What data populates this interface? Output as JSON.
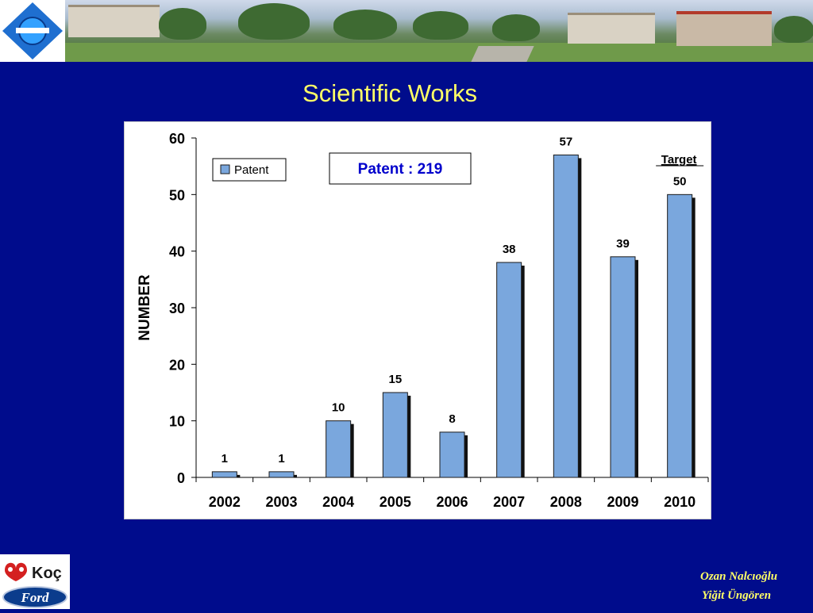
{
  "slide": {
    "title": "Scientific Works",
    "authors": [
      "Ozan Nalcıoğlu",
      "Yiğit Üngören"
    ]
  },
  "logos": {
    "top_left": "university-emblem",
    "bottom_left_top": "Koç",
    "bottom_left_bottom": "Ford"
  },
  "colors": {
    "background": "#000c8c",
    "title": "#ffff66",
    "bar_fill": "#7aa7dd",
    "bar_shadow": "#111111",
    "total_text": "#0000cc"
  },
  "chart_data": {
    "type": "bar",
    "categories": [
      "2002",
      "2003",
      "2004",
      "2005",
      "2006",
      "2007",
      "2008",
      "2009",
      "2010"
    ],
    "series": [
      {
        "name": "Patent",
        "values": [
          1,
          1,
          10,
          15,
          8,
          38,
          57,
          39,
          50
        ]
      }
    ],
    "data_labels": [
      "1",
      "1",
      "10",
      "15",
      "8",
      "38",
      "57",
      "39",
      "50"
    ],
    "ylabel": "NUMBER",
    "xlabel": "",
    "ylim": [
      0,
      60
    ],
    "yticks": [
      0,
      10,
      20,
      30,
      40,
      50,
      60
    ],
    "legend": {
      "placement": "top-left",
      "entries": [
        "Patent"
      ]
    },
    "total_box": "Patent  : 219",
    "target_annotation": {
      "category": "2010",
      "label": "Target"
    },
    "grid": false
  }
}
